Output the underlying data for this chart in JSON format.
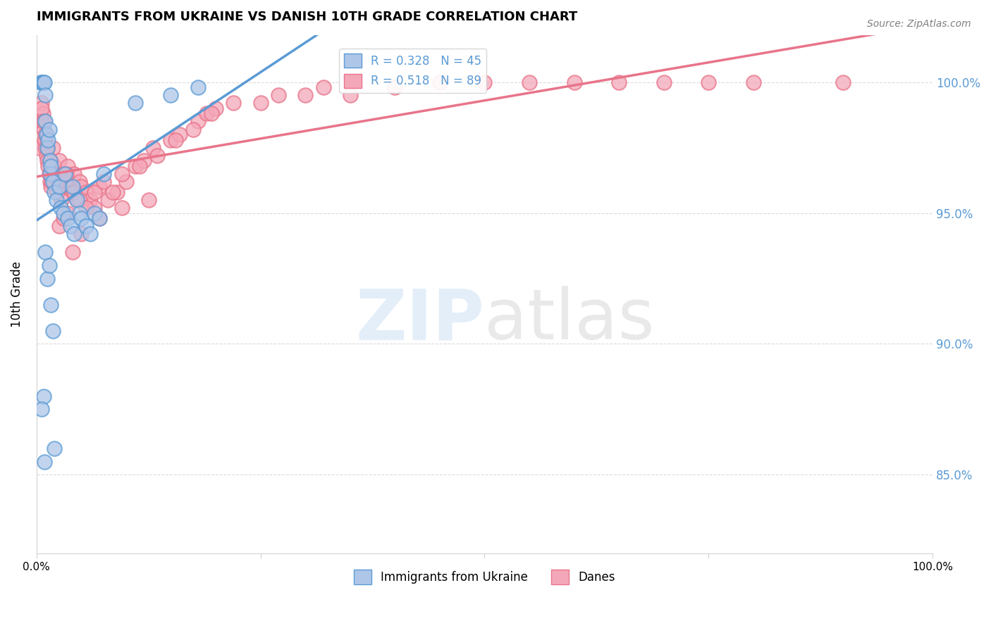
{
  "title": "IMMIGRANTS FROM UKRAINE VS DANISH 10TH GRADE CORRELATION CHART",
  "source": "Source: ZipAtlas.com",
  "ylabel": "10th Grade",
  "y_ticks": [
    85.0,
    90.0,
    95.0,
    100.0
  ],
  "y_tick_labels": [
    "85.0%",
    "90.0%",
    "95.0%",
    "100.0%"
  ],
  "blue_color": "#5b9bd5",
  "pink_color": "#e8748a",
  "blue_fill": "#aec6e8",
  "pink_fill": "#f4a7b9",
  "R_ukraine": 0.328,
  "N_ukraine": 45,
  "R_danes": 0.518,
  "N_danes": 89,
  "ukraine_points_x": [
    0.005,
    0.006,
    0.007,
    0.008,
    0.009,
    0.01,
    0.01,
    0.011,
    0.012,
    0.013,
    0.014,
    0.015,
    0.015,
    0.016,
    0.018,
    0.02,
    0.022,
    0.025,
    0.027,
    0.03,
    0.032,
    0.035,
    0.038,
    0.04,
    0.042,
    0.045,
    0.048,
    0.05,
    0.055,
    0.06,
    0.065,
    0.07,
    0.075,
    0.01,
    0.012,
    0.014,
    0.016,
    0.018,
    0.008,
    0.006,
    0.009,
    0.15,
    0.18,
    0.02,
    0.11
  ],
  "ukraine_points_y": [
    100.0,
    100.0,
    100.0,
    100.0,
    100.0,
    99.5,
    98.5,
    98.0,
    97.5,
    97.8,
    98.2,
    97.0,
    96.5,
    96.8,
    96.2,
    95.8,
    95.5,
    96.0,
    95.2,
    95.0,
    96.5,
    94.8,
    94.5,
    96.0,
    94.2,
    95.5,
    95.0,
    94.8,
    94.5,
    94.2,
    95.0,
    94.8,
    96.5,
    93.5,
    92.5,
    93.0,
    91.5,
    90.5,
    88.0,
    87.5,
    85.5,
    99.5,
    99.8,
    86.0,
    99.2
  ],
  "danes_points_x": [
    0.003,
    0.005,
    0.006,
    0.007,
    0.008,
    0.009,
    0.01,
    0.011,
    0.012,
    0.013,
    0.014,
    0.015,
    0.016,
    0.018,
    0.02,
    0.022,
    0.025,
    0.028,
    0.03,
    0.032,
    0.035,
    0.038,
    0.04,
    0.042,
    0.045,
    0.048,
    0.05,
    0.055,
    0.06,
    0.065,
    0.07,
    0.08,
    0.09,
    0.1,
    0.11,
    0.12,
    0.13,
    0.15,
    0.16,
    0.18,
    0.19,
    0.2,
    0.25,
    0.3,
    0.4,
    0.5,
    0.6,
    0.7,
    0.8,
    0.9,
    0.006,
    0.008,
    0.01,
    0.012,
    0.015,
    0.018,
    0.022,
    0.028,
    0.035,
    0.042,
    0.048,
    0.055,
    0.065,
    0.075,
    0.085,
    0.095,
    0.115,
    0.135,
    0.155,
    0.175,
    0.195,
    0.22,
    0.27,
    0.32,
    0.45,
    0.55,
    0.65,
    0.75,
    0.35,
    0.04,
    0.025,
    0.03,
    0.05,
    0.07,
    0.095,
    0.125,
    0.017,
    0.023,
    0.033
  ],
  "danes_points_y": [
    97.5,
    98.5,
    99.2,
    98.8,
    98.2,
    97.8,
    97.5,
    97.2,
    97.0,
    96.8,
    96.5,
    96.2,
    96.0,
    97.5,
    96.8,
    96.5,
    97.0,
    96.0,
    96.5,
    96.2,
    96.8,
    96.0,
    95.8,
    96.5,
    95.5,
    96.2,
    96.0,
    95.8,
    95.5,
    95.2,
    96.0,
    95.5,
    95.8,
    96.2,
    96.8,
    97.0,
    97.5,
    97.8,
    98.0,
    98.5,
    98.8,
    99.0,
    99.2,
    99.5,
    99.8,
    100.0,
    100.0,
    100.0,
    100.0,
    100.0,
    99.0,
    98.5,
    98.0,
    97.5,
    97.0,
    96.5,
    96.0,
    95.5,
    95.0,
    95.8,
    95.5,
    95.2,
    95.8,
    96.2,
    95.8,
    96.5,
    96.8,
    97.2,
    97.8,
    98.2,
    98.8,
    99.2,
    99.5,
    99.8,
    100.0,
    100.0,
    100.0,
    100.0,
    99.5,
    93.5,
    94.5,
    94.8,
    94.2,
    94.8,
    95.2,
    95.5,
    96.2,
    95.8,
    96.5
  ]
}
